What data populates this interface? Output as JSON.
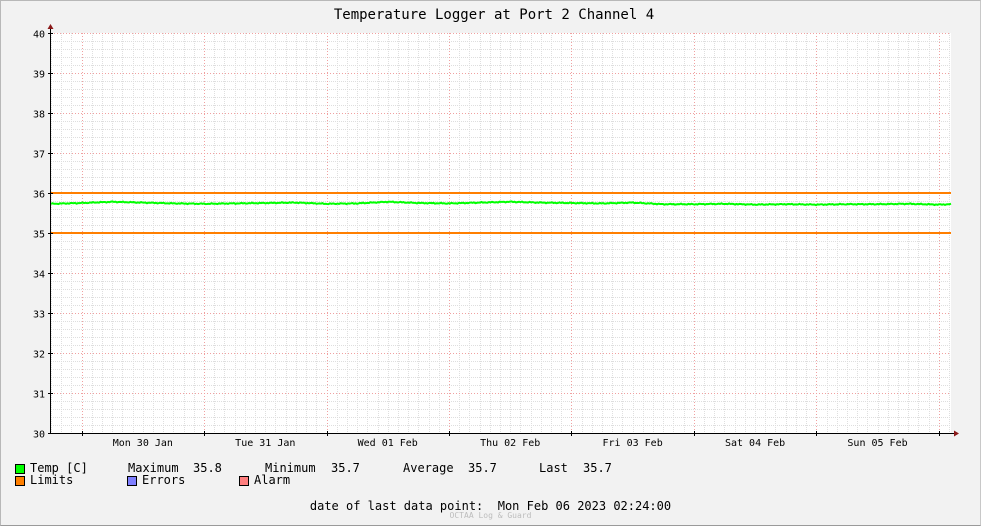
{
  "chart_data": {
    "type": "line",
    "title": "Temperature Logger at Port 2 Channel 4",
    "ylim": [
      30,
      40
    ],
    "yticks": [
      30,
      31,
      32,
      33,
      34,
      35,
      36,
      37,
      38,
      39,
      40
    ],
    "xlim": [
      "2023-01-29T18:00",
      "2023-02-06T02:24"
    ],
    "xtick_labels": [
      "Mon 30 Jan",
      "Tue 31 Jan",
      "Wed 01 Feb",
      "Thu 02 Feb",
      "Fri 03 Feb",
      "Sat 04 Feb",
      "Sun 05 Feb"
    ],
    "grid": true,
    "limits": [
      35,
      36
    ],
    "series": [
      {
        "name": "Temp [C]",
        "color": "#00ff00",
        "x": [
          "2023-01-29T18:00",
          "2023-01-30T00:00",
          "2023-01-30T06:00",
          "2023-01-30T12:00",
          "2023-01-30T18:00",
          "2023-01-31T00:00",
          "2023-01-31T06:00",
          "2023-01-31T12:00",
          "2023-01-31T18:00",
          "2023-02-01T00:00",
          "2023-02-01T06:00",
          "2023-02-01T12:00",
          "2023-02-01T18:00",
          "2023-02-02T00:00",
          "2023-02-02T06:00",
          "2023-02-02T12:00",
          "2023-02-02T18:00",
          "2023-02-03T00:00",
          "2023-02-03T06:00",
          "2023-02-03T12:00",
          "2023-02-03T18:00",
          "2023-02-04T00:00",
          "2023-02-04T06:00",
          "2023-02-04T12:00",
          "2023-02-04T18:00",
          "2023-02-05T00:00",
          "2023-02-05T06:00",
          "2023-02-05T12:00",
          "2023-02-05T18:00",
          "2023-02-06T00:00",
          "2023-02-06T02:24"
        ],
        "y": [
          35.73,
          35.75,
          35.78,
          35.76,
          35.74,
          35.73,
          35.74,
          35.75,
          35.76,
          35.73,
          35.74,
          35.78,
          35.75,
          35.74,
          35.76,
          35.78,
          35.76,
          35.75,
          35.74,
          35.76,
          35.72,
          35.72,
          35.73,
          35.71,
          35.72,
          35.71,
          35.72,
          35.72,
          35.73,
          35.71,
          35.72
        ]
      }
    ]
  },
  "legend": {
    "temp_label": "Temp [C]",
    "temp_color": "#00ff00",
    "limits_label": "Limits",
    "limits_color": "#ff7f00",
    "errors_label": "Errors",
    "errors_color": "#7f7fff",
    "alarm_label": "Alarm",
    "alarm_color": "#ff7f7f"
  },
  "stats": {
    "maximum_label": "Maximum",
    "maximum_value": "35.8",
    "minimum_label": "Minimum",
    "minimum_value": "35.7",
    "average_label": "Average",
    "average_value": "35.7",
    "last_label": "Last",
    "last_value": "35.7"
  },
  "footer": {
    "last_point_label": "date of last data point:",
    "last_point_value": "Mon Feb 06 2023 02:24:00",
    "credit": "OCTAA Log & Guard"
  }
}
